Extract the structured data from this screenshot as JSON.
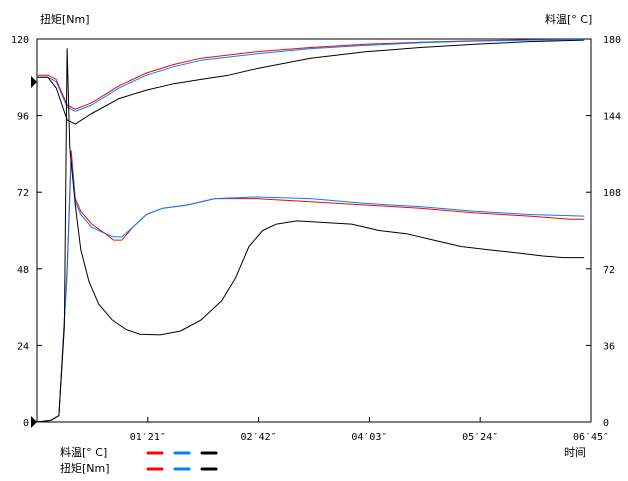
{
  "left_axis_title": "扭矩[Nm]",
  "right_axis_title": "料温[° C]",
  "x_axis_title": "时间",
  "legend": [
    {
      "label": "料温[° C]",
      "colors": [
        "#ff0000",
        "#0080ff",
        "#000000"
      ]
    },
    {
      "label": "扭矩[Nm]",
      "colors": [
        "#ff0000",
        "#0080ff",
        "#000000"
      ]
    }
  ],
  "chart_data": {
    "type": "line",
    "x_unit": "seconds",
    "xlim": [
      0,
      405
    ],
    "x_ticks": [
      {
        "value": 81,
        "label": "01′21″"
      },
      {
        "value": 162,
        "label": "02′42″"
      },
      {
        "value": 243,
        "label": "04′03″"
      },
      {
        "value": 324,
        "label": "05′24″"
      },
      {
        "value": 405,
        "label": "06′45″"
      }
    ],
    "y_left": {
      "label": "扭矩[Nm]",
      "ylim": [
        0,
        120
      ],
      "ticks": [
        0,
        24,
        48,
        72,
        96,
        120
      ]
    },
    "y_right": {
      "label": "料温[° C]",
      "ylim": [
        0,
        180
      ],
      "ticks": [
        0,
        36,
        72,
        108,
        144,
        180
      ]
    },
    "series": [
      {
        "axis": "right",
        "color": "#ff0000",
        "points": [
          [
            0,
            163
          ],
          [
            8,
            163
          ],
          [
            14,
            161
          ],
          [
            22,
            149
          ],
          [
            28,
            147
          ],
          [
            40,
            150
          ],
          [
            60,
            158
          ],
          [
            80,
            164
          ],
          [
            100,
            168
          ],
          [
            120,
            171
          ],
          [
            160,
            174
          ],
          [
            200,
            176
          ],
          [
            240,
            177.5
          ],
          [
            280,
            178.5
          ],
          [
            320,
            179.2
          ],
          [
            360,
            179.6
          ],
          [
            400,
            179.8
          ]
        ]
      },
      {
        "axis": "right",
        "color": "#0080ff",
        "points": [
          [
            0,
            162
          ],
          [
            8,
            162
          ],
          [
            14,
            160
          ],
          [
            22,
            148
          ],
          [
            28,
            146
          ],
          [
            40,
            149
          ],
          [
            60,
            157
          ],
          [
            80,
            163
          ],
          [
            100,
            167
          ],
          [
            120,
            170
          ],
          [
            160,
            173
          ],
          [
            200,
            175.5
          ],
          [
            240,
            177
          ],
          [
            280,
            178.2
          ],
          [
            320,
            179
          ],
          [
            360,
            179.5
          ],
          [
            400,
            179.8
          ]
        ]
      },
      {
        "axis": "right",
        "color": "#000000",
        "points": [
          [
            0,
            162
          ],
          [
            8,
            162
          ],
          [
            14,
            157
          ],
          [
            22,
            142
          ],
          [
            28,
            140
          ],
          [
            40,
            145
          ],
          [
            60,
            152
          ],
          [
            80,
            156
          ],
          [
            100,
            159
          ],
          [
            120,
            161
          ],
          [
            140,
            163
          ],
          [
            160,
            166
          ],
          [
            200,
            171
          ],
          [
            240,
            174
          ],
          [
            280,
            176
          ],
          [
            320,
            177.5
          ],
          [
            360,
            178.8
          ],
          [
            400,
            179.5
          ]
        ]
      },
      {
        "axis": "left",
        "color": "#ff0000",
        "points": [
          [
            0,
            0
          ],
          [
            10,
            0.5
          ],
          [
            16,
            2
          ],
          [
            22,
            48
          ],
          [
            25,
            85
          ],
          [
            28,
            70
          ],
          [
            32,
            66
          ],
          [
            40,
            62
          ],
          [
            50,
            59
          ],
          [
            56,
            57
          ],
          [
            62,
            57
          ],
          [
            70,
            61
          ],
          [
            80,
            65
          ],
          [
            92,
            67
          ],
          [
            110,
            68
          ],
          [
            130,
            70
          ],
          [
            160,
            70
          ],
          [
            200,
            69
          ],
          [
            240,
            68
          ],
          [
            280,
            67
          ],
          [
            320,
            65.5
          ],
          [
            360,
            64.5
          ],
          [
            390,
            63.5
          ],
          [
            400,
            63.5
          ]
        ]
      },
      {
        "axis": "left",
        "color": "#0080ff",
        "points": [
          [
            0,
            0
          ],
          [
            10,
            0.5
          ],
          [
            16,
            2
          ],
          [
            22,
            46
          ],
          [
            25,
            83
          ],
          [
            28,
            69
          ],
          [
            32,
            65
          ],
          [
            40,
            61
          ],
          [
            50,
            59
          ],
          [
            56,
            58
          ],
          [
            62,
            58
          ],
          [
            70,
            61
          ],
          [
            80,
            65
          ],
          [
            92,
            67
          ],
          [
            110,
            68
          ],
          [
            130,
            70
          ],
          [
            160,
            70.5
          ],
          [
            200,
            70
          ],
          [
            240,
            68.5
          ],
          [
            280,
            67.5
          ],
          [
            320,
            66
          ],
          [
            360,
            65
          ],
          [
            400,
            64.5
          ]
        ]
      },
      {
        "axis": "left",
        "color": "#000000",
        "points": [
          [
            0,
            0
          ],
          [
            10,
            0.5
          ],
          [
            16,
            2
          ],
          [
            20,
            30
          ],
          [
            22,
            117
          ],
          [
            24,
            86
          ],
          [
            28,
            68
          ],
          [
            32,
            54
          ],
          [
            38,
            44
          ],
          [
            45,
            37
          ],
          [
            55,
            32
          ],
          [
            65,
            29
          ],
          [
            75,
            27.5
          ],
          [
            90,
            27.3
          ],
          [
            105,
            28.5
          ],
          [
            120,
            32
          ],
          [
            135,
            38
          ],
          [
            145,
            45
          ],
          [
            155,
            55
          ],
          [
            165,
            60
          ],
          [
            175,
            62
          ],
          [
            190,
            63
          ],
          [
            210,
            62.5
          ],
          [
            230,
            62
          ],
          [
            250,
            60
          ],
          [
            270,
            59
          ],
          [
            290,
            57
          ],
          [
            310,
            55
          ],
          [
            330,
            54
          ],
          [
            350,
            53
          ],
          [
            370,
            52
          ],
          [
            385,
            51.5
          ],
          [
            400,
            51.5
          ]
        ]
      }
    ]
  }
}
